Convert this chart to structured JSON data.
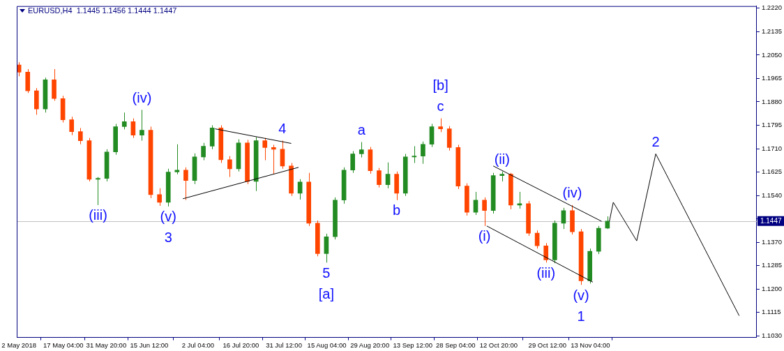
{
  "chart_data": {
    "type": "candlestick",
    "title": "EURUSD,H4  1.1445 1.1456 1.1444 1.1447",
    "xlim": [
      "2018-05-01T06:00",
      "2019-01-09"
    ],
    "xticks": [
      {
        "value": "2018-05-02",
        "label": "2 May 2018"
      },
      {
        "value": "2018-05-17T04:00",
        "label": "17 May 04:00"
      },
      {
        "value": "2018-05-31T20:00",
        "label": "31 May 20:00"
      },
      {
        "value": "2018-06-15T12:00",
        "label": "15 Jun 12:00"
      },
      {
        "value": "2018-07-02T04:00",
        "label": "2 Jul 04:00"
      },
      {
        "value": "2018-07-16T20:00",
        "label": "16 Jul 20:00"
      },
      {
        "value": "2018-07-31T12:00",
        "label": "31 Jul 12:00"
      },
      {
        "value": "2018-08-15T04:00",
        "label": "15 Aug 04:00"
      },
      {
        "value": "2018-08-29T20:00",
        "label": "29 Aug 20:00"
      },
      {
        "value": "2018-09-13T12:00",
        "label": "13 Sep 12:00"
      },
      {
        "value": "2018-09-28T04:00",
        "label": "28 Sep 04:00"
      },
      {
        "value": "2018-10-12T20:00",
        "label": "12 Oct 20:00"
      },
      {
        "value": "2018-10-29T12:00",
        "label": "29 Oct 12:00"
      },
      {
        "value": "2018-11-13T04:00",
        "label": "13 Nov 04:00"
      }
    ],
    "ylim": [
      1.1024,
      1.2228
    ],
    "yticks": [
      {
        "value": 1.222,
        "label": "1.2220"
      },
      {
        "value": 1.2135,
        "label": "1.2135"
      },
      {
        "value": 1.205,
        "label": "1.2050"
      },
      {
        "value": 1.1965,
        "label": "1.1965"
      },
      {
        "value": 1.188,
        "label": "1.1880"
      },
      {
        "value": 1.1795,
        "label": "1.1795"
      },
      {
        "value": 1.171,
        "label": "1.1710"
      },
      {
        "value": 1.1625,
        "label": "1.1625"
      },
      {
        "value": 1.154,
        "label": "1.1540"
      },
      {
        "value": 1.1455,
        "label": null
      },
      {
        "value": 1.137,
        "label": "1.1370"
      },
      {
        "value": 1.1285,
        "label": "1.1285"
      },
      {
        "value": 1.12,
        "label": "1.1200"
      },
      {
        "value": 1.1115,
        "label": "1.1115"
      },
      {
        "value": 1.103,
        "label": "1.1030"
      }
    ],
    "legend": false,
    "series": [
      {
        "type": "candlestick",
        "x": [
          "2018-05-02",
          "2018-05-05",
          "2018-05-08",
          "2018-05-11",
          "2018-05-14",
          "2018-05-17",
          "2018-05-20",
          "2018-05-23",
          "2018-05-26",
          "2018-05-29",
          "2018-06-01",
          "2018-06-04",
          "2018-06-07",
          "2018-06-10",
          "2018-06-13",
          "2018-06-16",
          "2018-06-19",
          "2018-06-22",
          "2018-06-25",
          "2018-06-28",
          "2018-07-01",
          "2018-07-04",
          "2018-07-07",
          "2018-07-10",
          "2018-07-13",
          "2018-07-16",
          "2018-07-19",
          "2018-07-22",
          "2018-07-25",
          "2018-07-28",
          "2018-07-31",
          "2018-08-03",
          "2018-08-06",
          "2018-08-09",
          "2018-08-12",
          "2018-08-15",
          "2018-08-18",
          "2018-08-21",
          "2018-08-24",
          "2018-08-27",
          "2018-08-30",
          "2018-09-02",
          "2018-09-05",
          "2018-09-08",
          "2018-09-11",
          "2018-09-14",
          "2018-09-17",
          "2018-09-20",
          "2018-09-23",
          "2018-09-26",
          "2018-09-29",
          "2018-10-02",
          "2018-10-05",
          "2018-10-08",
          "2018-10-11",
          "2018-10-14",
          "2018-10-17",
          "2018-10-20",
          "2018-10-23",
          "2018-10-26",
          "2018-10-29",
          "2018-11-01",
          "2018-11-04",
          "2018-11-07",
          "2018-11-10",
          "2018-11-13",
          "2018-11-16",
          "2018-11-19"
        ],
        "ohlc": [
          [
            1.2014,
            1.2024,
            1.1973,
            1.1988
          ],
          [
            1.1988,
            1.1999,
            1.1912,
            1.192
          ],
          [
            1.192,
            1.193,
            1.1833,
            1.1854
          ],
          [
            1.1854,
            1.1968,
            1.1841,
            1.196
          ],
          [
            1.196,
            1.1999,
            1.1884,
            1.1892
          ],
          [
            1.1892,
            1.1902,
            1.1805,
            1.1815
          ],
          [
            1.1815,
            1.1826,
            1.1759,
            1.1772
          ],
          [
            1.1772,
            1.1785,
            1.1726,
            1.1739
          ],
          [
            1.1739,
            1.1749,
            1.1591,
            1.1599
          ],
          [
            1.1599,
            1.1607,
            1.1505,
            1.1602
          ],
          [
            1.1602,
            1.1708,
            1.1591,
            1.1698
          ],
          [
            1.1698,
            1.18,
            1.1688,
            1.179
          ],
          [
            1.179,
            1.1841,
            1.178,
            1.1808
          ],
          [
            1.1808,
            1.182,
            1.1749,
            1.1759
          ],
          [
            1.1759,
            1.1851,
            1.1739,
            1.1777
          ],
          [
            1.1777,
            1.179,
            1.153,
            1.1543
          ],
          [
            1.1543,
            1.1566,
            1.1502,
            1.1515
          ],
          [
            1.1515,
            1.1637,
            1.15,
            1.1625
          ],
          [
            1.1625,
            1.1726,
            1.1617,
            1.1632
          ],
          [
            1.1632,
            1.1642,
            1.1523,
            1.1594
          ],
          [
            1.1594,
            1.1693,
            1.1581,
            1.168
          ],
          [
            1.168,
            1.1731,
            1.1668,
            1.1719
          ],
          [
            1.1719,
            1.1795,
            1.1708,
            1.1785
          ],
          [
            1.1785,
            1.1795,
            1.1658,
            1.167
          ],
          [
            1.167,
            1.1683,
            1.1607,
            1.1637
          ],
          [
            1.1637,
            1.1744,
            1.1627,
            1.1731
          ],
          [
            1.1731,
            1.1742,
            1.1581,
            1.1591
          ],
          [
            1.1591,
            1.1752,
            1.1556,
            1.1739
          ],
          [
            1.1739,
            1.1749,
            1.1668,
            1.1714
          ],
          [
            1.1714,
            1.1724,
            1.1619,
            1.1708
          ],
          [
            1.1708,
            1.1739,
            1.1637,
            1.1647
          ],
          [
            1.1647,
            1.1658,
            1.1538,
            1.1548
          ],
          [
            1.1548,
            1.1599,
            1.1525,
            1.1589
          ],
          [
            1.1589,
            1.1622,
            1.1429,
            1.1439
          ],
          [
            1.1439,
            1.1449,
            1.1319,
            1.1329
          ],
          [
            1.1329,
            1.1401,
            1.1296,
            1.139
          ],
          [
            1.139,
            1.1533,
            1.138,
            1.1523
          ],
          [
            1.1523,
            1.1642,
            1.151,
            1.1632
          ],
          [
            1.1632,
            1.1701,
            1.1622,
            1.1691
          ],
          [
            1.1691,
            1.1734,
            1.1678,
            1.1706
          ],
          [
            1.1706,
            1.1716,
            1.1619,
            1.163
          ],
          [
            1.163,
            1.164,
            1.1569,
            1.1579
          ],
          [
            1.1579,
            1.166,
            1.1566,
            1.1617
          ],
          [
            1.1617,
            1.1627,
            1.1523,
            1.1548
          ],
          [
            1.1548,
            1.1691,
            1.1538,
            1.168
          ],
          [
            1.168,
            1.1719,
            1.1658,
            1.1683
          ],
          [
            1.1683,
            1.1736,
            1.1655,
            1.1726
          ],
          [
            1.1726,
            1.18,
            1.1716,
            1.179
          ],
          [
            1.179,
            1.182,
            1.177,
            1.1782
          ],
          [
            1.1782,
            1.1792,
            1.1703,
            1.1714
          ],
          [
            1.1714,
            1.1724,
            1.1563,
            1.1574
          ],
          [
            1.1574,
            1.1584,
            1.1467,
            1.1479
          ],
          [
            1.1479,
            1.1553,
            1.1469,
            1.1523
          ],
          [
            1.1523,
            1.1533,
            1.1429,
            1.1485
          ],
          [
            1.1485,
            1.1622,
            1.1474,
            1.1612
          ],
          [
            1.1612,
            1.1627,
            1.1591,
            1.1617
          ],
          [
            1.1617,
            1.1622,
            1.149,
            1.1505
          ],
          [
            1.1505,
            1.1553,
            1.1492,
            1.151
          ],
          [
            1.151,
            1.152,
            1.1393,
            1.1403
          ],
          [
            1.1403,
            1.1413,
            1.1347,
            1.1357
          ],
          [
            1.1357,
            1.1367,
            1.1296,
            1.1306
          ],
          [
            1.1306,
            1.1449,
            1.1294,
            1.1439
          ],
          [
            1.1439,
            1.1495,
            1.1418,
            1.1485
          ],
          [
            1.1485,
            1.1505,
            1.1398,
            1.1408
          ],
          [
            1.1408,
            1.1418,
            1.1215,
            1.123
          ],
          [
            1.123,
            1.1347,
            1.122,
            1.1337
          ],
          [
            1.1337,
            1.1429,
            1.1327,
            1.1421
          ],
          [
            1.1421,
            1.1464,
            1.1418,
            1.1447
          ]
        ],
        "colors": [
          "#ff4500",
          "#ff4500",
          "#ff4500",
          "#228b22",
          "#ff4500",
          "#ff4500",
          "#ff4500",
          "#ff4500",
          "#ff4500",
          "#228b22",
          "#228b22",
          "#228b22",
          "#228b22",
          "#ff4500",
          "#228b22",
          "#ff4500",
          "#ff4500",
          "#228b22",
          "#228b22",
          "#ff4500",
          "#228b22",
          "#228b22",
          "#228b22",
          "#ff4500",
          "#ff4500",
          "#228b22",
          "#ff4500",
          "#228b22",
          "#ff4500",
          "#ff4500",
          "#ff4500",
          "#ff4500",
          "#228b22",
          "#ff4500",
          "#ff4500",
          "#228b22",
          "#228b22",
          "#228b22",
          "#228b22",
          "#228b22",
          "#ff4500",
          "#ff4500",
          "#228b22",
          "#ff4500",
          "#228b22",
          "#228b22",
          "#228b22",
          "#228b22",
          "#ff4500",
          "#ff4500",
          "#ff4500",
          "#ff4500",
          "#228b22",
          "#ff4500",
          "#228b22",
          "#228b22",
          "#ff4500",
          "#228b22",
          "#ff4500",
          "#ff4500",
          "#ff4500",
          "#228b22",
          "#228b22",
          "#ff4500",
          "#ff4500",
          "#228b22",
          "#228b22",
          "#228b22"
        ]
      },
      {
        "type": "line",
        "color": "#000000",
        "x": [
          "2018-07-08",
          "2018-08-03"
        ],
        "values": [
          1.1782,
          1.1729
        ]
      },
      {
        "type": "line",
        "color": "#000000",
        "x": [
          "2018-06-27",
          "2018-08-05T12:00"
        ],
        "values": [
          1.1528,
          1.1642
        ]
      },
      {
        "type": "line",
        "color": "#000000",
        "x": [
          "2018-10-11",
          "2018-11-17"
        ],
        "values": [
          1.1647,
          1.1446
        ]
      },
      {
        "type": "line",
        "color": "#000000",
        "x": [
          "2018-10-08T19:00",
          "2018-11-14"
        ],
        "values": [
          1.1429,
          1.1225
        ]
      },
      {
        "type": "line",
        "color": "#000000",
        "x": [
          "2018-11-19T16:00",
          "2018-11-21",
          "2018-11-29",
          "2018-12-05T12:00",
          "2019-01-03"
        ],
        "values": [
          1.1446,
          1.1515,
          1.1375,
          1.1691,
          1.1103
        ]
      }
    ],
    "marker": "none",
    "ref_lines": [
      {
        "axis": "y",
        "value": 1.1447,
        "label": "1.1447",
        "color": "#c0c0c0"
      }
    ],
    "annotations": [
      {
        "text": "(iii)",
        "x": "2018-05-29",
        "y": 1.1505
      },
      {
        "text": "(iv)",
        "x": "2018-06-13",
        "y": 1.1851
      },
      {
        "text": "(v)",
        "x": "2018-06-22",
        "y": 1.15
      },
      {
        "text": "3",
        "x": "2018-06-22",
        "y": 1.15
      },
      {
        "text": "4",
        "x": "2018-07-31",
        "y": 1.1739
      },
      {
        "text": "5",
        "x": "2018-08-15",
        "y": 1.1296
      },
      {
        "text": "[a]",
        "x": "2018-08-15",
        "y": 1.1296
      },
      {
        "text": "a",
        "x": "2018-08-27",
        "y": 1.1734
      },
      {
        "text": "b",
        "x": "2018-09-08",
        "y": 1.1523
      },
      {
        "text": "c",
        "x": "2018-09-23",
        "y": 1.182
      },
      {
        "text": "[b]",
        "x": "2018-09-23",
        "y": 1.182
      },
      {
        "text": "(i)",
        "x": "2018-10-08",
        "y": 1.1429
      },
      {
        "text": "(ii)",
        "x": "2018-10-14",
        "y": 1.1627
      },
      {
        "text": "(iii)",
        "x": "2018-10-29",
        "y": 1.1296
      },
      {
        "text": "(iv)",
        "x": "2018-11-07",
        "y": 1.1505
      },
      {
        "text": "(v)",
        "x": "2018-11-10",
        "y": 1.1215
      },
      {
        "text": "1",
        "x": "2018-11-10",
        "y": 1.1215
      },
      {
        "text": "2",
        "x": "2018-12-05T12:00",
        "y": 1.1691
      }
    ]
  }
}
